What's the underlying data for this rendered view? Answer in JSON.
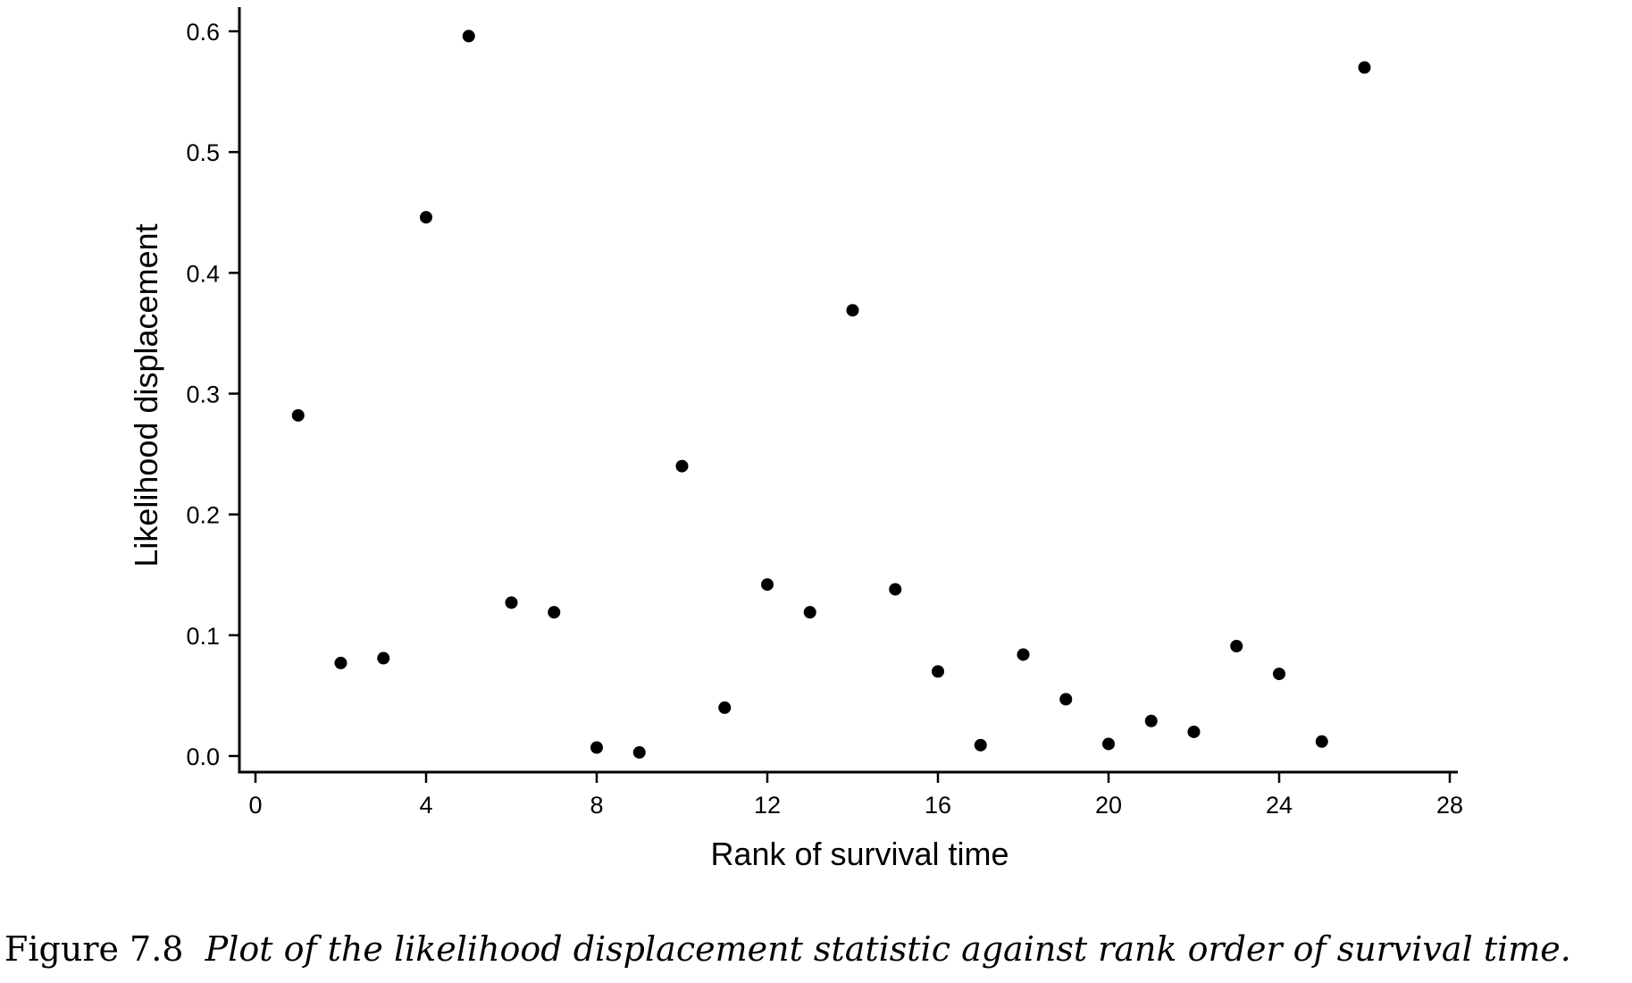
{
  "chart_data": {
    "type": "scatter",
    "xlabel": "Rank of survival time",
    "ylabel": "Likelihood displacement",
    "xlim": [
      0,
      28
    ],
    "ylim": [
      0.0,
      0.6
    ],
    "x_ticks": [
      0,
      4,
      8,
      12,
      16,
      20,
      24,
      28
    ],
    "y_ticks": [
      0.0,
      0.1,
      0.2,
      0.3,
      0.4,
      0.5,
      0.6
    ],
    "y_tick_labels": [
      "0.0",
      "0.1",
      "0.2",
      "0.3",
      "0.4",
      "0.5",
      "0.6"
    ],
    "grid": false,
    "marker_color": "#000000",
    "points": [
      {
        "x": 1,
        "y": 0.282
      },
      {
        "x": 2,
        "y": 0.077
      },
      {
        "x": 3,
        "y": 0.081
      },
      {
        "x": 4,
        "y": 0.446
      },
      {
        "x": 5,
        "y": 0.596
      },
      {
        "x": 6,
        "y": 0.127
      },
      {
        "x": 7,
        "y": 0.119
      },
      {
        "x": 8,
        "y": 0.007
      },
      {
        "x": 9,
        "y": 0.003
      },
      {
        "x": 10,
        "y": 0.24
      },
      {
        "x": 11,
        "y": 0.04
      },
      {
        "x": 12,
        "y": 0.142
      },
      {
        "x": 13,
        "y": 0.119
      },
      {
        "x": 14,
        "y": 0.369
      },
      {
        "x": 15,
        "y": 0.138
      },
      {
        "x": 16,
        "y": 0.07
      },
      {
        "x": 17,
        "y": 0.009
      },
      {
        "x": 18,
        "y": 0.084
      },
      {
        "x": 19,
        "y": 0.047
      },
      {
        "x": 20,
        "y": 0.01
      },
      {
        "x": 21,
        "y": 0.029
      },
      {
        "x": 22,
        "y": 0.02
      },
      {
        "x": 23,
        "y": 0.091
      },
      {
        "x": 24,
        "y": 0.068
      },
      {
        "x": 25,
        "y": 0.012
      },
      {
        "x": 26,
        "y": 0.57
      }
    ]
  },
  "caption": {
    "label": "Figure 7.8",
    "text": "Plot of the likelihood displacement statistic against rank order of survival time."
  }
}
